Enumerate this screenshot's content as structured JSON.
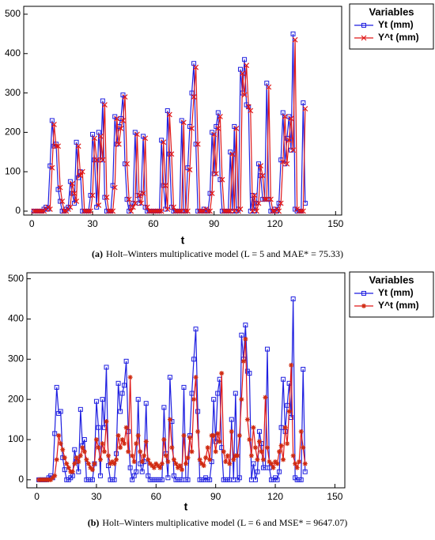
{
  "chart_data": [
    {
      "type": "line",
      "caption_label": "(a)",
      "caption": "Holt–Winters multiplicative model (L = 5 and MAE* = 75.33)",
      "xlabel": "t",
      "legend_title": "Variables",
      "legend": "outside-right",
      "xlim": [
        -4,
        153
      ],
      "xticks": [
        0,
        30,
        60,
        90,
        120,
        150
      ],
      "ylim": [
        -10,
        520
      ],
      "yticks": [
        0,
        100,
        200,
        300,
        400,
        500
      ],
      "x": [
        1,
        2,
        3,
        4,
        5,
        6,
        7,
        8,
        9,
        10,
        11,
        12,
        13,
        14,
        15,
        16,
        17,
        18,
        19,
        20,
        21,
        22,
        23,
        24,
        25,
        26,
        27,
        28,
        29,
        30,
        31,
        32,
        33,
        34,
        35,
        36,
        37,
        38,
        39,
        40,
        41,
        42,
        43,
        44,
        45,
        46,
        47,
        48,
        49,
        50,
        51,
        52,
        53,
        54,
        55,
        56,
        57,
        58,
        59,
        60,
        61,
        62,
        63,
        64,
        65,
        66,
        67,
        68,
        69,
        70,
        71,
        72,
        73,
        74,
        75,
        76,
        77,
        78,
        79,
        80,
        81,
        82,
        83,
        84,
        85,
        86,
        87,
        88,
        89,
        90,
        91,
        92,
        93,
        94,
        95,
        96,
        97,
        98,
        99,
        100,
        101,
        102,
        103,
        104,
        105,
        106,
        107,
        108,
        109,
        110,
        111,
        112,
        113,
        114,
        115,
        116,
        117,
        118,
        119,
        120,
        121,
        122,
        123,
        124,
        125,
        126,
        127,
        128,
        129,
        130,
        131,
        132,
        133,
        134,
        135
      ],
      "series": [
        {
          "name": "Yt (mm)",
          "color": "#1f1fe0",
          "marker": "square",
          "values": [
            0,
            0,
            0,
            0,
            0,
            5,
            10,
            5,
            115,
            230,
            165,
            170,
            55,
            25,
            0,
            0,
            5,
            10,
            75,
            45,
            20,
            175,
            85,
            100,
            0,
            0,
            0,
            0,
            40,
            195,
            130,
            10,
            200,
            130,
            280,
            35,
            0,
            0,
            0,
            65,
            240,
            170,
            215,
            235,
            295,
            120,
            30,
            0,
            10,
            20,
            200,
            40,
            20,
            45,
            190,
            10,
            0,
            0,
            0,
            0,
            0,
            0,
            0,
            180,
            65,
            5,
            255,
            145,
            10,
            0,
            0,
            0,
            0,
            230,
            0,
            0,
            110,
            215,
            300,
            375,
            170,
            0,
            0,
            0,
            5,
            0,
            0,
            45,
            200,
            95,
            215,
            250,
            80,
            0,
            0,
            0,
            0,
            150,
            0,
            215,
            0,
            5,
            360,
            300,
            385,
            270,
            265,
            0,
            40,
            0,
            20,
            120,
            90,
            30,
            30,
            325,
            30,
            0,
            0,
            5,
            0,
            20,
            130,
            250,
            120,
            185,
            240,
            155,
            450,
            5,
            0,
            0,
            0,
            275,
            20
          ]
        },
        {
          "name": "Y^t (mm)",
          "color": "#e01818",
          "marker": "x",
          "values": [
            0,
            0,
            0,
            0,
            0,
            0,
            5,
            10,
            5,
            110,
            220,
            165,
            165,
            60,
            25,
            0,
            0,
            5,
            10,
            70,
            45,
            25,
            165,
            90,
            100,
            0,
            0,
            0,
            0,
            40,
            185,
            130,
            15,
            190,
            130,
            270,
            35,
            0,
            0,
            0,
            60,
            235,
            170,
            210,
            230,
            290,
            120,
            30,
            0,
            10,
            20,
            195,
            40,
            20,
            45,
            185,
            10,
            0,
            0,
            0,
            0,
            0,
            0,
            0,
            175,
            65,
            5,
            245,
            145,
            10,
            0,
            0,
            0,
            0,
            225,
            0,
            0,
            105,
            210,
            290,
            365,
            170,
            0,
            0,
            0,
            5,
            0,
            0,
            45,
            195,
            95,
            210,
            240,
            80,
            0,
            0,
            0,
            0,
            145,
            0,
            210,
            0,
            5,
            350,
            295,
            370,
            265,
            255,
            0,
            40,
            0,
            20,
            115,
            90,
            30,
            30,
            315,
            30,
            0,
            0,
            5,
            0,
            20,
            125,
            240,
            120,
            180,
            235,
            155,
            435,
            5,
            0,
            0,
            0,
            260
          ]
        }
      ]
    },
    {
      "type": "line",
      "caption_label": "(b)",
      "caption": "Holt–Winters multiplicative model (L = 6 and MSE* = 9647.07)",
      "xlabel": "t",
      "legend_title": "Variables",
      "legend": "outside-right",
      "xlim": [
        -5,
        155
      ],
      "xticks": [
        0,
        30,
        60,
        90,
        120,
        150
      ],
      "ylim": [
        -20,
        515
      ],
      "yticks": [
        0,
        100,
        200,
        300,
        400,
        500
      ],
      "x": [
        1,
        2,
        3,
        4,
        5,
        6,
        7,
        8,
        9,
        10,
        11,
        12,
        13,
        14,
        15,
        16,
        17,
        18,
        19,
        20,
        21,
        22,
        23,
        24,
        25,
        26,
        27,
        28,
        29,
        30,
        31,
        32,
        33,
        34,
        35,
        36,
        37,
        38,
        39,
        40,
        41,
        42,
        43,
        44,
        45,
        46,
        47,
        48,
        49,
        50,
        51,
        52,
        53,
        54,
        55,
        56,
        57,
        58,
        59,
        60,
        61,
        62,
        63,
        64,
        65,
        66,
        67,
        68,
        69,
        70,
        71,
        72,
        73,
        74,
        75,
        76,
        77,
        78,
        79,
        80,
        81,
        82,
        83,
        84,
        85,
        86,
        87,
        88,
        89,
        90,
        91,
        92,
        93,
        94,
        95,
        96,
        97,
        98,
        99,
        100,
        101,
        102,
        103,
        104,
        105,
        106,
        107,
        108,
        109,
        110,
        111,
        112,
        113,
        114,
        115,
        116,
        117,
        118,
        119,
        120,
        121,
        122,
        123,
        124,
        125,
        126,
        127,
        128,
        129,
        130,
        131,
        132,
        133,
        134,
        135
      ],
      "series": [
        {
          "name": "Yt (mm)",
          "color": "#1f1fe0",
          "marker": "square",
          "values": [
            0,
            0,
            0,
            0,
            0,
            5,
            10,
            5,
            115,
            230,
            165,
            170,
            55,
            25,
            0,
            0,
            5,
            10,
            75,
            45,
            20,
            175,
            85,
            100,
            0,
            0,
            0,
            0,
            40,
            195,
            130,
            10,
            200,
            130,
            280,
            35,
            0,
            0,
            0,
            65,
            240,
            170,
            215,
            235,
            295,
            120,
            30,
            0,
            10,
            20,
            200,
            40,
            20,
            45,
            190,
            10,
            0,
            0,
            0,
            0,
            0,
            0,
            0,
            180,
            65,
            5,
            255,
            145,
            10,
            0,
            0,
            0,
            0,
            230,
            0,
            0,
            110,
            215,
            300,
            375,
            170,
            0,
            0,
            0,
            5,
            0,
            0,
            45,
            200,
            95,
            215,
            250,
            80,
            0,
            0,
            0,
            0,
            150,
            0,
            215,
            0,
            5,
            360,
            300,
            385,
            270,
            265,
            0,
            40,
            0,
            20,
            120,
            90,
            30,
            30,
            325,
            30,
            0,
            0,
            5,
            0,
            20,
            130,
            250,
            120,
            185,
            240,
            155,
            450,
            5,
            0,
            0,
            0,
            275,
            20
          ]
        },
        {
          "name": "Y^t (mm)",
          "color": "#d02a10",
          "marker": "star",
          "values": [
            0,
            0,
            0,
            0,
            0,
            0,
            0,
            5,
            10,
            50,
            110,
            90,
            75,
            55,
            40,
            30,
            20,
            20,
            40,
            55,
            45,
            60,
            80,
            70,
            50,
            40,
            30,
            25,
            40,
            100,
            80,
            50,
            90,
            70,
            145,
            60,
            40,
            45,
            40,
            50,
            110,
            80,
            100,
            90,
            130,
            70,
            255,
            60,
            45,
            90,
            110,
            70,
            45,
            60,
            95,
            50,
            40,
            35,
            30,
            40,
            35,
            30,
            40,
            100,
            60,
            45,
            150,
            80,
            50,
            40,
            30,
            35,
            25,
            110,
            40,
            55,
            105,
            70,
            200,
            255,
            120,
            50,
            40,
            35,
            55,
            80,
            50,
            110,
            110,
            70,
            115,
            95,
            265,
            70,
            45,
            60,
            40,
            120,
            50,
            60,
            60,
            110,
            200,
            295,
            350,
            150,
            100,
            60,
            130,
            80,
            50,
            95,
            70,
            50,
            205,
            80,
            45,
            40,
            30,
            45,
            40,
            70,
            85,
            50,
            130,
            90,
            170,
            285,
            60,
            40,
            30,
            45,
            120,
            80,
            40
          ]
        }
      ]
    }
  ]
}
